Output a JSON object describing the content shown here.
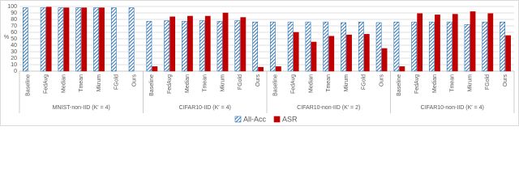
{
  "chart_data": {
    "type": "bar",
    "y_label": "%",
    "groups": [
      "MNIST-non-IID (K′ = 4)",
      "CIFAR10-IID (K′ = 4)",
      "CIFAR10-non-IID (K′ = 2)",
      "CIFAR10-non-IID (K′ = 4)"
    ],
    "categories": [
      "Baseline",
      "FedAvg",
      "Median",
      "Tmean",
      "Mkrum",
      "FGold",
      "Ours",
      "Baseline",
      "FedAvg",
      "Median",
      "Tmean",
      "Mkrum",
      "FGold",
      "Ours",
      "Baseline",
      "FedAvg",
      "Median",
      "Tmean",
      "Mkrum",
      "FGold",
      "Ours",
      "Baseline",
      "FedAvg",
      "Median",
      "Tmean",
      "Mkrum",
      "FGold",
      "Ours"
    ],
    "series": [
      {
        "name": "All-Acc",
        "color": "#2e75b6",
        "hatch": true,
        "values": [
          98,
          98,
          98,
          98,
          98,
          98,
          98,
          77,
          78,
          77,
          78,
          77,
          78,
          76,
          76,
          76,
          76,
          76,
          75,
          76,
          75,
          76,
          76,
          76,
          76,
          72,
          76,
          76
        ]
      },
      {
        "name": "ASR",
        "color": "#c00000",
        "hatch": false,
        "values": [
          null,
          99,
          98,
          98,
          98,
          null,
          null,
          7,
          84,
          85,
          85,
          90,
          83,
          6,
          7,
          60,
          45,
          54,
          56,
          57,
          35,
          7,
          89,
          87,
          88,
          92,
          89,
          55
        ]
      }
    ],
    "ylim": [
      0,
      100
    ],
    "yticks": [
      0,
      10,
      20,
      30,
      40,
      50,
      60,
      70,
      80,
      90,
      100
    ],
    "grid": true,
    "legend": "bottom"
  }
}
